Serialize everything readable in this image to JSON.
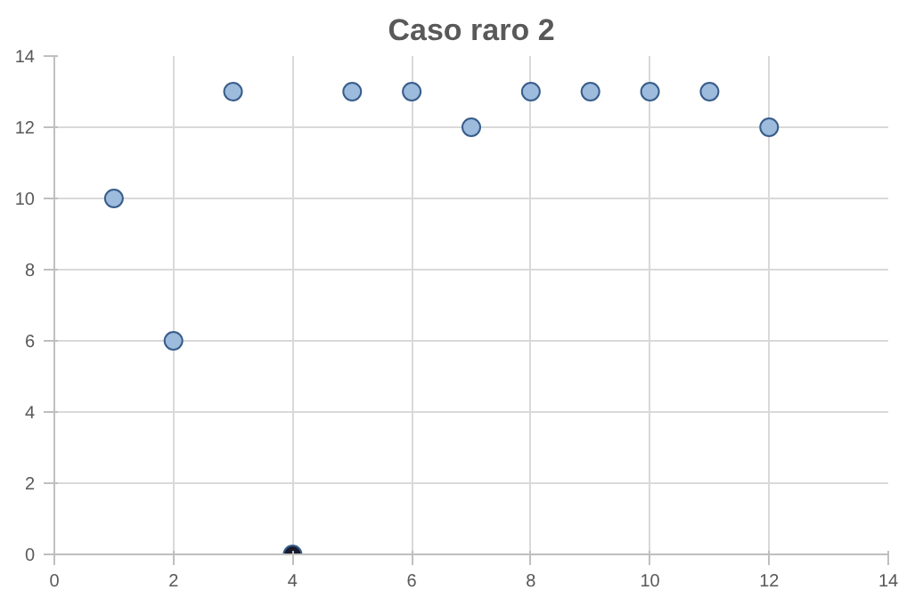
{
  "chart_data": {
    "type": "scatter",
    "title": "Caso raro 2",
    "x": [
      1,
      2,
      3,
      4,
      5,
      6,
      7,
      8,
      9,
      10,
      11,
      12
    ],
    "values": [
      10,
      6,
      13,
      0,
      13,
      13,
      12,
      13,
      13,
      13,
      13,
      12
    ],
    "colors": [
      "#9dbbdc",
      "#9dbbdc",
      "#9dbbdc",
      "#1a1a2e",
      "#9dbbdc",
      "#9dbbdc",
      "#9dbbdc",
      "#9dbbdc",
      "#9dbbdc",
      "#9dbbdc",
      "#9dbbdc",
      "#9dbbdc"
    ],
    "xlim": [
      0,
      14
    ],
    "ylim": [
      0,
      14
    ],
    "xticks": [
      0,
      2,
      4,
      6,
      8,
      10,
      12,
      14
    ],
    "yticks": [
      0,
      2,
      4,
      6,
      8,
      10,
      12,
      14
    ],
    "grid": true,
    "marker": "circle"
  }
}
